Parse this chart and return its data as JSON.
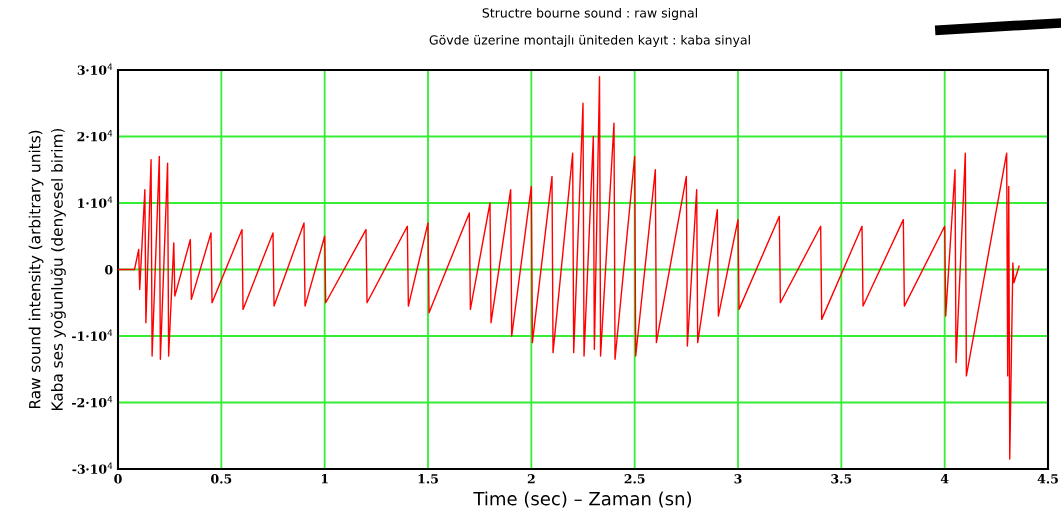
{
  "chart_data": {
    "type": "line",
    "title": "Structre bourne sound : raw signal",
    "subtitle": "Gövde üzerine montajlı üniteden kayıt : kaba sinyal",
    "xlabel": "Time (sec) – Zaman (sn)",
    "ylabel": "Raw sound intensity (arbitrary units)\nKaba ses yoğunluğu (denyesel birim)",
    "xlim": [
      0,
      4.5
    ],
    "xticks": [
      0,
      0.5,
      1,
      1.5,
      2,
      2.5,
      3,
      3.5,
      4,
      4.5
    ],
    "ylim": [
      -30000,
      30000
    ],
    "yticks": [
      {
        "value": -30000,
        "label": "-3·10$^{4}$"
      },
      {
        "value": -20000,
        "label": "-2·10$^{4}$"
      },
      {
        "value": -10000,
        "label": "-1·10$^{4}$"
      },
      0,
      {
        "value": 10000,
        "label": "1·10$^{4}$"
      },
      {
        "value": 20000,
        "label": "2·10$^{4}$"
      },
      {
        "value": 30000,
        "label": "3·10$^{4}$"
      }
    ],
    "grid": true,
    "marker": "none",
    "line_style": "solid",
    "series": [
      {
        "color": "#ff0000",
        "x": [
          0,
          0.08,
          0.1,
          0.105,
          0.13,
          0.135,
          0.16,
          0.165,
          0.2,
          0.205,
          0.24,
          0.245,
          0.27,
          0.275,
          0.35,
          0.355,
          0.45,
          0.455,
          0.6,
          0.605,
          0.75,
          0.755,
          0.9,
          0.905,
          1.0,
          1.005,
          1.2,
          1.205,
          1.4,
          1.405,
          1.5,
          1.505,
          1.7,
          1.705,
          1.8,
          1.805,
          1.9,
          1.905,
          2.0,
          2.005,
          2.1,
          2.105,
          2.2,
          2.205,
          2.25,
          2.255,
          2.3,
          2.305,
          2.33,
          2.335,
          2.4,
          2.405,
          2.5,
          2.505,
          2.6,
          2.605,
          2.75,
          2.755,
          2.8,
          2.805,
          2.9,
          2.905,
          3.0,
          3.005,
          3.2,
          3.205,
          3.4,
          3.405,
          3.6,
          3.605,
          3.8,
          3.805,
          4.0,
          4.005,
          4.05,
          4.055,
          4.1,
          4.105,
          4.3,
          4.305,
          4.31,
          4.315,
          4.33,
          4.335,
          4.36
        ],
        "values": [
          0,
          0,
          3000,
          -3000,
          12000,
          -8000,
          16500,
          -13000,
          17000,
          -13500,
          16000,
          -13000,
          4000,
          -4000,
          4500,
          -4500,
          5500,
          -5000,
          6000,
          -6000,
          5500,
          -5500,
          7000,
          -5500,
          5000,
          -5000,
          6000,
          -5000,
          6500,
          -5500,
          7000,
          -6500,
          8500,
          -6000,
          10000,
          -8000,
          12000,
          -10000,
          12500,
          -11000,
          14000,
          -12500,
          17500,
          -12500,
          25000,
          -13000,
          20000,
          -12000,
          29000,
          -13000,
          22000,
          -13500,
          17000,
          -13000,
          15000,
          -11000,
          14000,
          -11500,
          12000,
          -11000,
          9000,
          -7000,
          7500,
          -6000,
          8000,
          -5000,
          6500,
          -7500,
          6500,
          -5500,
          7500,
          -5500,
          6500,
          -7000,
          15000,
          -14000,
          17500,
          -16000,
          17500,
          -16000,
          12500,
          -28500,
          1000,
          -2000,
          500
        ]
      }
    ]
  }
}
